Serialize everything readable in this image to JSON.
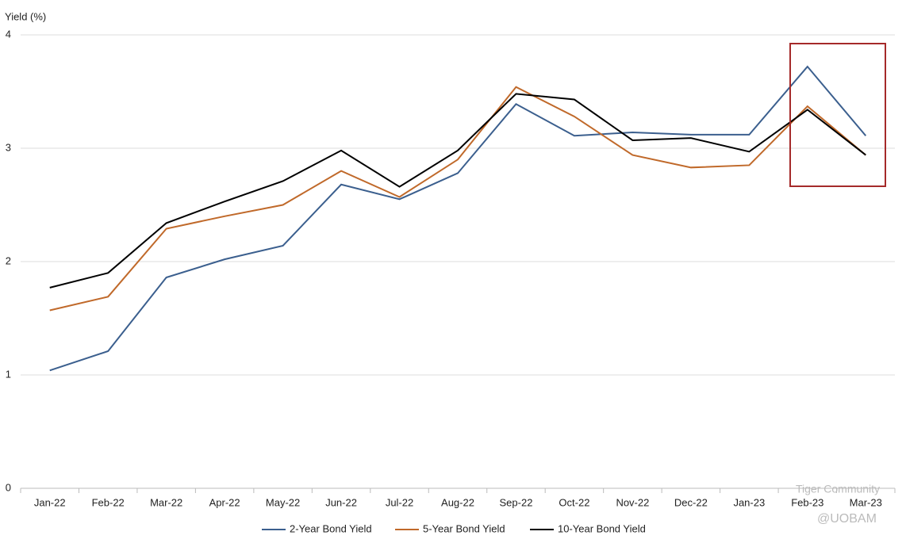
{
  "chart_data": {
    "type": "line",
    "y_label": "Yield (%)",
    "categories": [
      "Jan-22",
      "Feb-22",
      "Mar-22",
      "Apr-22",
      "May-22",
      "Jun-22",
      "Jul-22",
      "Aug-22",
      "Sep-22",
      "Oct-22",
      "Nov-22",
      "Dec-22",
      "Jan-23",
      "Feb-23",
      "Mar-23"
    ],
    "series": [
      {
        "name": "2-Year Bond Yield",
        "color": "#3b5f8e",
        "values": [
          1.04,
          1.21,
          1.86,
          2.02,
          2.14,
          2.68,
          2.55,
          2.78,
          3.39,
          3.11,
          3.14,
          3.12,
          3.12,
          3.72,
          3.11
        ]
      },
      {
        "name": "5-Year Bond Yield",
        "color": "#c0692a",
        "values": [
          1.57,
          1.69,
          2.29,
          2.4,
          2.5,
          2.8,
          2.57,
          2.9,
          3.54,
          3.28,
          2.94,
          2.83,
          2.85,
          3.37,
          2.94
        ]
      },
      {
        "name": "10-Year Bond Yield",
        "color": "#000000",
        "values": [
          1.77,
          1.9,
          2.34,
          2.53,
          2.71,
          2.98,
          2.66,
          2.98,
          3.48,
          3.43,
          3.07,
          3.09,
          2.97,
          3.34,
          2.94
        ]
      }
    ],
    "ylim": [
      0,
      4
    ],
    "yticks": [
      0,
      1,
      2,
      3,
      4
    ],
    "grid": true,
    "legend": "bottom",
    "watermark": [
      "Tiger Community",
      "@UOBAM"
    ]
  }
}
